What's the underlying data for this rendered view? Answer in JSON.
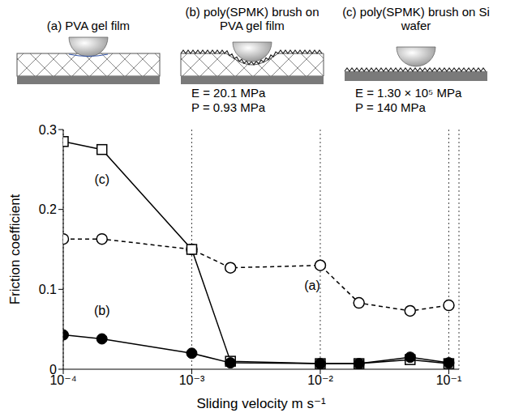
{
  "panels": [
    {
      "title": "(a) PVA gel film"
    },
    {
      "title": "(b) poly(SPMK) brush on PVA gel film",
      "lines": [
        "E = 20.1 MPa",
        "P = 0.93 MPa"
      ]
    },
    {
      "title": "(c) poly(SPMK) brush on Si wafer",
      "lines": [
        "E = 1.30 × 10⁵ MPa",
        "P = 140 MPa"
      ]
    }
  ],
  "chart_data": {
    "type": "line",
    "x": [
      0.0001,
      0.0002,
      0.001,
      0.002,
      0.01,
      0.02,
      0.05,
      0.1
    ],
    "xlabel": "Sliding velocity m s⁻¹",
    "ylabel": "Friction coefficient",
    "log": "x",
    "xlim": [
      0.0001,
      0.12
    ],
    "xticks": [
      {
        "value": 0.0001,
        "label": "10⁻⁴"
      },
      {
        "value": 0.001,
        "label": "10⁻³"
      },
      {
        "value": 0.01,
        "label": "10⁻²"
      },
      {
        "value": 0.1,
        "label": "10⁻¹"
      }
    ],
    "ylim": [
      0,
      0.3
    ],
    "yticks": [
      0,
      0.1,
      0.2,
      0.3
    ],
    "grid": "x",
    "series": [
      {
        "name": "(a)",
        "color": "#000000",
        "marker": "circle-open",
        "line_style": "dashed",
        "values": [
          0.163,
          0.163,
          0.15,
          0.127,
          0.13,
          0.083,
          0.073,
          0.08
        ]
      },
      {
        "name": "(b)",
        "color": "#000000",
        "marker": "circle",
        "line_style": "solid",
        "values": [
          0.043,
          0.038,
          0.02,
          0.008,
          0.007,
          0.007,
          0.015,
          0.008
        ]
      },
      {
        "name": "(c)",
        "color": "#000000",
        "marker": "square-open",
        "line_style": "solid",
        "values": [
          0.285,
          0.275,
          0.15,
          0.01,
          0.007,
          0.007,
          0.012,
          0.007
        ]
      }
    ]
  }
}
